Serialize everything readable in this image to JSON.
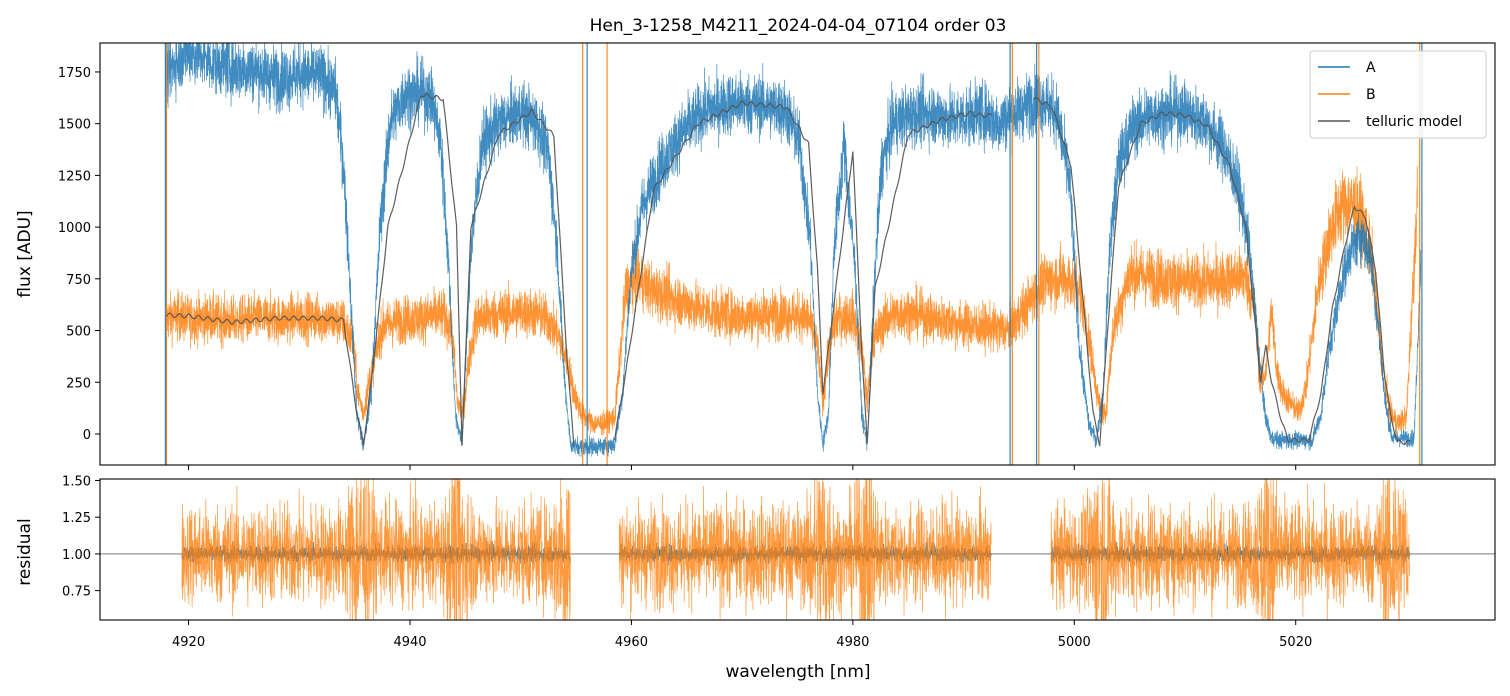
{
  "figure": {
    "title": "Hen_3-1258_M4211_2024-04-04_07104  order 03",
    "xlabel": "wavelength [nm]"
  },
  "colors": {
    "A": "#1f77b4",
    "B": "#ff7f0e",
    "telluric": "#555555"
  },
  "chart_data": [
    {
      "type": "line",
      "panel": "top",
      "ylabel": "flux [ADU]",
      "xlim": [
        4912,
        5038
      ],
      "ylim": [
        -150,
        1890
      ],
      "xticks": [
        4920,
        4940,
        4960,
        4980,
        5000,
        5020
      ],
      "yticks": [
        0,
        250,
        500,
        750,
        1000,
        1250,
        1500,
        1750
      ],
      "legend": {
        "placement": "top-right",
        "entries": [
          "A",
          "B",
          "telluric model"
        ]
      },
      "series": [
        {
          "name": "A",
          "x": [
            4917.9,
            4918.5,
            4920,
            4922,
            4924,
            4926,
            4928,
            4930,
            4932,
            4933.3,
            4934,
            4934.6,
            4935.2,
            4935.8,
            4936.5,
            4937.3,
            4938.2,
            4939.5,
            4941,
            4942,
            4942.8,
            4943.5,
            4944.1,
            4944.7,
            4945.5,
            4946.5,
            4948,
            4950,
            4951.5,
            4952.5,
            4953.3,
            4953.9,
            4954.5,
            4955.0,
            4956.2,
            4957.5,
            4958.5,
            4959.2,
            4960,
            4961,
            4962.5,
            4964.5,
            4966.5,
            4969,
            4972,
            4974,
            4975.2,
            4976.2,
            4976.8,
            4977.3,
            4977.8,
            4978.3,
            4979.2,
            4980.2,
            4980.8,
            4981.3,
            4981.9,
            4982.6,
            4983.6,
            4985,
            4987,
            4989,
            4990.5,
            4991.5,
            4992.3,
            4993,
            4996.7,
            4997.5,
            4998.5,
            4999.6,
            5000.5,
            5001.3,
            5002,
            5002.6,
            5003.2,
            5004,
            5005.2,
            5006.5,
            5008,
            5010,
            5012,
            5013.5,
            5014.8,
            5015.8,
            5016.5,
            5017.2,
            5017.8,
            5018.5,
            5019.5,
            5020.5,
            5021.5,
            5022.3,
            5023,
            5024,
            5025,
            5026,
            5026.8,
            5027.5,
            5028.1,
            5028.7,
            5029.3,
            5030,
            5030.7,
            5031.3
          ],
          "y": [
            1720,
            1780,
            1850,
            1800,
            1770,
            1760,
            1720,
            1740,
            1730,
            1650,
            1300,
            700,
            100,
            -60,
            200,
            1000,
            1500,
            1640,
            1650,
            1620,
            1400,
            800,
            100,
            -50,
            900,
            1400,
            1500,
            1560,
            1500,
            1350,
            900,
            300,
            -50,
            -60,
            -60,
            -60,
            -50,
            200,
            800,
            1100,
            1280,
            1450,
            1560,
            1600,
            1590,
            1560,
            1400,
            900,
            200,
            -50,
            100,
            900,
            1400,
            800,
            100,
            -50,
            700,
            1300,
            1500,
            1540,
            1550,
            1520,
            1540,
            1550,
            1540,
            1500,
            1620,
            1600,
            1540,
            1200,
            400,
            50,
            -30,
            200,
            900,
            1300,
            1480,
            1530,
            1550,
            1560,
            1500,
            1380,
            1200,
            900,
            500,
            100,
            -20,
            -30,
            -30,
            -30,
            -30,
            100,
            400,
            700,
            900,
            960,
            850,
            500,
            150,
            -20,
            -20,
            -20,
            -20,
            850
          ]
        },
        {
          "name": "B",
          "x": [
            4918,
            4919,
            4920,
            4922,
            4924,
            4926,
            4928,
            4930,
            4932,
            4934,
            4934.8,
            4935.3,
            4935.8,
            4936.3,
            4937.5,
            4939,
            4941,
            4943,
            4943.8,
            4944.3,
            4944.8,
            4945.3,
            4946,
            4948,
            4950,
            4951.5,
            4952.5,
            4953.5,
            4954.2,
            4954.8,
            4955.5,
            4956.5,
            4957.5,
            4958.5,
            4959.5,
            4960.5,
            4962,
            4964,
            4966,
            4968,
            4970,
            4972,
            4974,
            4976,
            4976.8,
            4977.3,
            4977.8,
            4978.5,
            4980,
            4980.8,
            4981.3,
            4981.8,
            4983,
            4985,
            4987,
            4989,
            4991,
            4993,
            4994,
            4996.8,
            4997.5,
            4999,
            5000.5,
            5001.5,
            5002.2,
            5002.8,
            5003.5,
            5005,
            5007,
            5009,
            5011,
            5013,
            5014.5,
            5015.5,
            5016.3,
            5016.8,
            5017.3,
            5017.8,
            5018.3,
            5018.8,
            5019.5,
            5020.3,
            5021,
            5022,
            5023,
            5024,
            5025,
            5026,
            5027,
            5027.8,
            5028.5,
            5029.2,
            5030,
            5031
          ],
          "y": [
            560,
            570,
            555,
            560,
            545,
            560,
            555,
            565,
            560,
            540,
            450,
            200,
            100,
            250,
            520,
            550,
            560,
            580,
            500,
            150,
            100,
            350,
            560,
            580,
            590,
            580,
            550,
            460,
            350,
            200,
            100,
            50,
            50,
            80,
            700,
            750,
            690,
            650,
            610,
            580,
            570,
            575,
            580,
            560,
            420,
            150,
            400,
            560,
            570,
            420,
            150,
            450,
            560,
            590,
            560,
            540,
            520,
            510,
            500,
            700,
            740,
            760,
            700,
            400,
            150,
            80,
            500,
            780,
            760,
            740,
            730,
            740,
            760,
            760,
            600,
            250,
            300,
            600,
            300,
            200,
            150,
            100,
            250,
            700,
            950,
            1100,
            1110,
            1050,
            800,
            350,
            100,
            50,
            80,
            1150
          ]
        },
        {
          "name": "telluric model",
          "x": [
            4918,
            4920,
            4924,
            4928,
            4932,
            4934,
            4935.2,
            4935.8,
            4936.5,
            4938,
            4941,
            4943,
            4944.2,
            4944.7,
            4945.5,
            4948,
            4951,
            4953,
            4954.2,
            4954.8,
            4958.5,
            4959.5,
            4962,
            4966,
            4970,
            4974,
            4976,
            4976.8,
            4977.3,
            4978,
            4980,
            4980.8,
            4981.3,
            4982,
            4985,
            4988,
            4990.5,
            4991.5,
            4992.5,
            4996.5,
            4998,
            4999.7,
            5000.7,
            5001.7,
            5002.3,
            5003,
            5004,
            5006,
            5008,
            5010,
            5012,
            5014,
            5015.5,
            5016.4,
            5016.8,
            5017.3,
            5017.8,
            5018.3,
            5018.8,
            5019.3,
            5020,
            5021.2,
            5022.3,
            5023.3,
            5024.4,
            5025.3,
            5026.3,
            5027.2,
            5028,
            5028.6,
            5029.2,
            5029.8,
            5030.4
          ],
          "y": [
            575,
            570,
            540,
            560,
            560,
            550,
            100,
            -50,
            250,
            1000,
            1640,
            1620,
            1000,
            -50,
            1000,
            1450,
            1560,
            1440,
            350,
            -50,
            -20,
            300,
            1180,
            1500,
            1600,
            1580,
            1400,
            800,
            200,
            500,
            1370,
            400,
            -50,
            700,
            1450,
            1520,
            1550,
            1540,
            1540,
            1620,
            1580,
            1300,
            700,
            100,
            -50,
            500,
            1200,
            1500,
            1550,
            1540,
            1490,
            1300,
            1000,
            500,
            260,
            420,
            260,
            150,
            50,
            -30,
            -30,
            -30,
            200,
            600,
            900,
            1100,
            1050,
            800,
            300,
            80,
            -40,
            -40,
            -40
          ]
        }
      ]
    },
    {
      "type": "line",
      "panel": "bottom",
      "ylabel": "residual",
      "xlim": [
        4912,
        5038
      ],
      "ylim": [
        0.55,
        1.51
      ],
      "xticks": [
        4920,
        4940,
        4960,
        4980,
        5000,
        5020
      ],
      "xticklabels": [
        "4920",
        "4940",
        "4960",
        "4980",
        "5000",
        "5020"
      ],
      "yticks": [
        0.75,
        1.0,
        1.25,
        1.5
      ],
      "reference_line": 1.0,
      "segments": [
        {
          "x_start": 4919.4,
          "x_end": 4954.5
        },
        {
          "x_start": 4958.9,
          "x_end": 4992.5
        },
        {
          "x_start": 4997.9,
          "x_end": 5030.3
        }
      ],
      "series": [
        {
          "name": "A",
          "spread": 0.03
        },
        {
          "name": "B",
          "spread": 0.17
        }
      ]
    }
  ]
}
